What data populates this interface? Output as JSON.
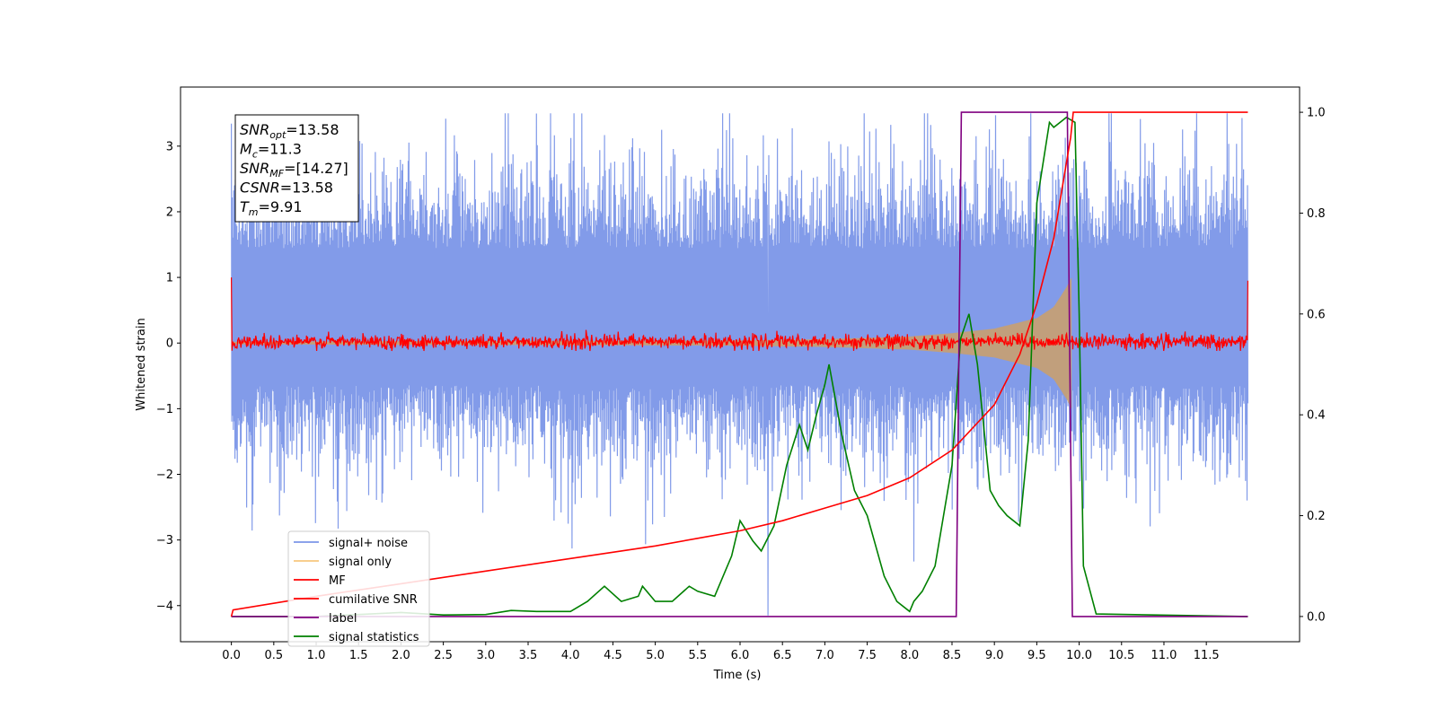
{
  "chart_data": {
    "type": "line",
    "xlabel": "Time (s)",
    "ylabel": "Whitened strain",
    "xlim": [
      -0.6,
      12.6
    ],
    "ylim_left": [
      -4.55,
      3.9
    ],
    "ylim_right": [
      -0.05,
      1.05
    ],
    "x_ticks": [
      0.0,
      0.5,
      1.0,
      1.5,
      2.0,
      2.5,
      3.0,
      3.5,
      4.0,
      4.5,
      5.0,
      5.5,
      6.0,
      6.5,
      7.0,
      7.5,
      8.0,
      8.5,
      9.0,
      9.5,
      10.0,
      10.5,
      11.0,
      11.5
    ],
    "x_tick_labels": [
      "0.0",
      "0.5",
      "1.0",
      "1.5",
      "2.0",
      "2.5",
      "3.0",
      "3.5",
      "4.0",
      "4.5",
      "5.0",
      "5.5",
      "6.0",
      "6.5",
      "7.0",
      "7.5",
      "8.0",
      "8.5",
      "9.0",
      "9.5",
      "10.0",
      "10.5",
      "11.0",
      "11.5"
    ],
    "y_left_ticks": [
      3,
      2,
      1,
      0,
      -1,
      -2,
      -3,
      -4
    ],
    "y_left_tick_labels": [
      "3",
      "2",
      "1",
      "0",
      "−1",
      "−2",
      "−3",
      "−4"
    ],
    "y_right_ticks": [
      1.0,
      0.8,
      0.6,
      0.4,
      0.2,
      0.0
    ],
    "y_right_tick_labels": [
      "1.0",
      "0.8",
      "0.6",
      "0.4",
      "0.2",
      "0.0"
    ],
    "annotation": [
      {
        "base": "SNR",
        "sub": "opt",
        "value": "=13.58"
      },
      {
        "base": "M",
        "sub": "c",
        "value": "=11.3"
      },
      {
        "base": "SNR",
        "sub": "MF",
        "value": "=[14.27]"
      },
      {
        "base": "CSNR",
        "sub": "",
        "value": "=13.58"
      },
      {
        "base": "T",
        "sub": "m",
        "value": "=9.91"
      }
    ],
    "legend": {
      "placement": "lower-left",
      "entries": [
        {
          "label": "signal+ noise",
          "color": "#7b96e8"
        },
        {
          "label": "signal only",
          "color": "#f7c77e"
        },
        {
          "label": "MF",
          "color": "#ff0000"
        },
        {
          "label": "cumilative SNR",
          "color": "#ff0000"
        },
        {
          "label": "label",
          "color": "#800080"
        },
        {
          "label": "signal statistics",
          "color": "#008000"
        }
      ]
    },
    "series": [
      {
        "name": "signal+ noise",
        "axis": "left",
        "color": "#7b96e8",
        "kind": "noise",
        "t_start": 0.0,
        "t_end": 11.99,
        "envelope_typical": [
          -1.5,
          2.3
        ],
        "extreme_range": [
          -4.15,
          3.5
        ]
      },
      {
        "name": "signal only",
        "axis": "left",
        "color": "#c8a070",
        "kind": "chirp",
        "t_start": 0.0,
        "t_merge": 9.91,
        "envelope": [
          [
            0.0,
            0.02
          ],
          [
            6.0,
            0.04
          ],
          [
            7.0,
            0.06
          ],
          [
            8.0,
            0.1
          ],
          [
            8.5,
            0.15
          ],
          [
            9.0,
            0.22
          ],
          [
            9.5,
            0.38
          ],
          [
            9.7,
            0.55
          ],
          [
            9.85,
            0.85
          ],
          [
            9.91,
            1.0
          ]
        ]
      },
      {
        "name": "MF",
        "axis": "left",
        "color": "#ff0000",
        "kind": "mf",
        "t_start": 0.0,
        "t_end": 11.99,
        "level": 0.02,
        "amplitude": 0.1,
        "start_value": 1.0,
        "end_value": 0.95
      },
      {
        "name": "cumilative SNR",
        "axis": "right",
        "x": [
          0.0,
          0.02,
          1.0,
          2.0,
          3.0,
          4.0,
          5.0,
          5.5,
          6.0,
          6.5,
          7.0,
          7.5,
          8.0,
          8.5,
          9.0,
          9.3,
          9.5,
          9.7,
          9.8,
          9.9,
          9.93,
          11.99
        ],
        "y": [
          0.0,
          0.013,
          0.04,
          0.065,
          0.09,
          0.115,
          0.14,
          0.155,
          0.17,
          0.19,
          0.215,
          0.24,
          0.275,
          0.33,
          0.42,
          0.52,
          0.62,
          0.75,
          0.85,
          0.95,
          1.0,
          1.0
        ]
      },
      {
        "name": "label",
        "axis": "right",
        "x": [
          0.0,
          8.55,
          8.61,
          9.86,
          9.92,
          11.99
        ],
        "y": [
          0.0,
          0.0,
          1.0,
          1.0,
          0.0,
          0.0
        ]
      },
      {
        "name": "signal statistics",
        "axis": "right",
        "x": [
          0.0,
          1.0,
          2.0,
          2.5,
          3.0,
          3.3,
          3.6,
          4.0,
          4.2,
          4.4,
          4.6,
          4.8,
          4.85,
          5.0,
          5.2,
          5.4,
          5.5,
          5.7,
          5.9,
          6.0,
          6.15,
          6.25,
          6.4,
          6.55,
          6.7,
          6.8,
          6.9,
          7.0,
          7.05,
          7.2,
          7.35,
          7.5,
          7.7,
          7.85,
          8.0,
          8.05,
          8.15,
          8.3,
          8.5,
          8.6,
          8.7,
          8.8,
          8.95,
          9.05,
          9.15,
          9.3,
          9.4,
          9.5,
          9.65,
          9.7,
          9.85,
          9.95,
          10.0,
          10.05,
          10.2,
          11.99
        ],
        "y": [
          0.0,
          0.0,
          0.008,
          0.003,
          0.004,
          0.012,
          0.01,
          0.01,
          0.03,
          0.06,
          0.03,
          0.04,
          0.06,
          0.03,
          0.03,
          0.06,
          0.05,
          0.04,
          0.12,
          0.19,
          0.15,
          0.13,
          0.18,
          0.3,
          0.38,
          0.33,
          0.4,
          0.46,
          0.5,
          0.36,
          0.25,
          0.2,
          0.08,
          0.03,
          0.01,
          0.03,
          0.05,
          0.1,
          0.3,
          0.55,
          0.6,
          0.5,
          0.25,
          0.22,
          0.2,
          0.18,
          0.35,
          0.82,
          0.98,
          0.97,
          0.99,
          0.98,
          0.6,
          0.1,
          0.005,
          0.0
        ]
      }
    ]
  }
}
